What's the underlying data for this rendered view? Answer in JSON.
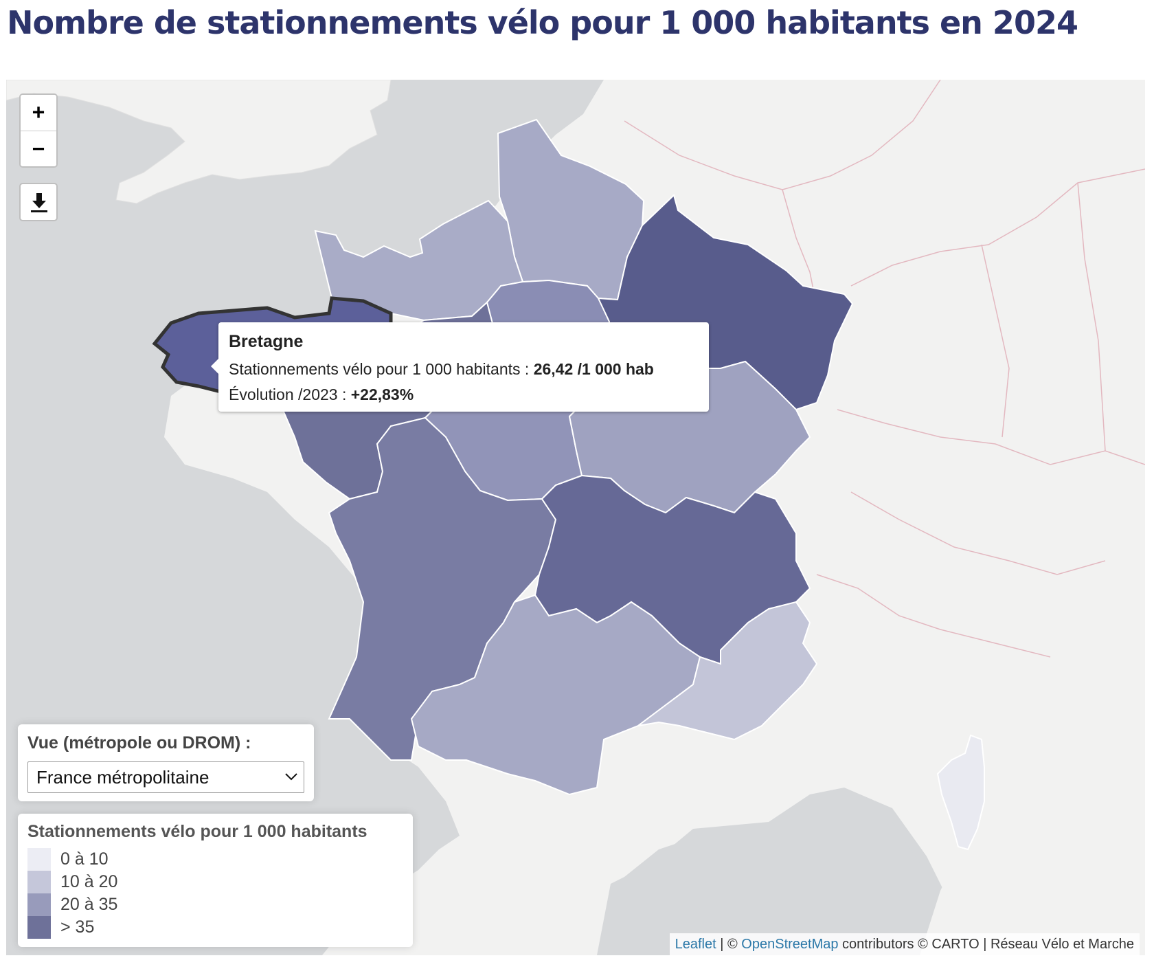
{
  "page": {
    "title": "Nombre de stationnements vélo pour 1 000 habitants en 2024"
  },
  "map": {
    "colors": {
      "sea": "#d6d8da",
      "land": "#f2f2f1",
      "border_foreign": "#e3b8c0",
      "region_outline": "#ffffff",
      "highlight_outline": "#333333"
    },
    "regions": [
      {
        "name": "Hauts-de-France",
        "fill": "#a7aac6"
      },
      {
        "name": "Normandie",
        "fill": "#a9acc7"
      },
      {
        "name": "Île-de-France",
        "fill": "#8a8db4"
      },
      {
        "name": "Grand Est",
        "fill": "#585c8c"
      },
      {
        "name": "Bretagne",
        "fill": "#5c609a"
      },
      {
        "name": "Pays de la Loire",
        "fill": "#6e7199"
      },
      {
        "name": "Centre-Val de Loire",
        "fill": "#9194b8"
      },
      {
        "name": "Bourgogne-Franche-Comté",
        "fill": "#9fa2c0"
      },
      {
        "name": "Nouvelle-Aquitaine",
        "fill": "#797ca3"
      },
      {
        "name": "Auvergne-Rhône-Alpes",
        "fill": "#666996"
      },
      {
        "name": "Occitanie",
        "fill": "#a6a9c5"
      },
      {
        "name": "Provence-Alpes-Côte d'Azur",
        "fill": "#c3c5d8"
      },
      {
        "name": "Corse",
        "fill": "#e9eaf1"
      }
    ]
  },
  "controls": {
    "zoom_in": "+",
    "zoom_out": "−",
    "download_icon": "download-icon"
  },
  "tooltip": {
    "title": "Bretagne",
    "line1_label": "Stationnements vélo pour 1 000 habitants : ",
    "line1_value": "26,42 /1 000 hab",
    "line2_label": "Évolution /2023 : ",
    "line2_value": "+22,83%"
  },
  "view_selector": {
    "label": "Vue (métropole ou DROM) :",
    "selected": "France métropolitaine"
  },
  "legend": {
    "title": "Stationnements vélo pour 1 000 habitants",
    "items": [
      {
        "label": "0 à 10",
        "color": "#ecedf4"
      },
      {
        "label": "10 à 20",
        "color": "#c5c7da"
      },
      {
        "label": "20 à 35",
        "color": "#989bbb"
      },
      {
        "label": "> 35",
        "color": "#6e7199"
      }
    ]
  },
  "attribution": {
    "leaflet": "Leaflet",
    "sep1": " | © ",
    "osm": "OpenStreetMap",
    "rest": " contributors © CARTO | Réseau Vélo et Marche"
  }
}
